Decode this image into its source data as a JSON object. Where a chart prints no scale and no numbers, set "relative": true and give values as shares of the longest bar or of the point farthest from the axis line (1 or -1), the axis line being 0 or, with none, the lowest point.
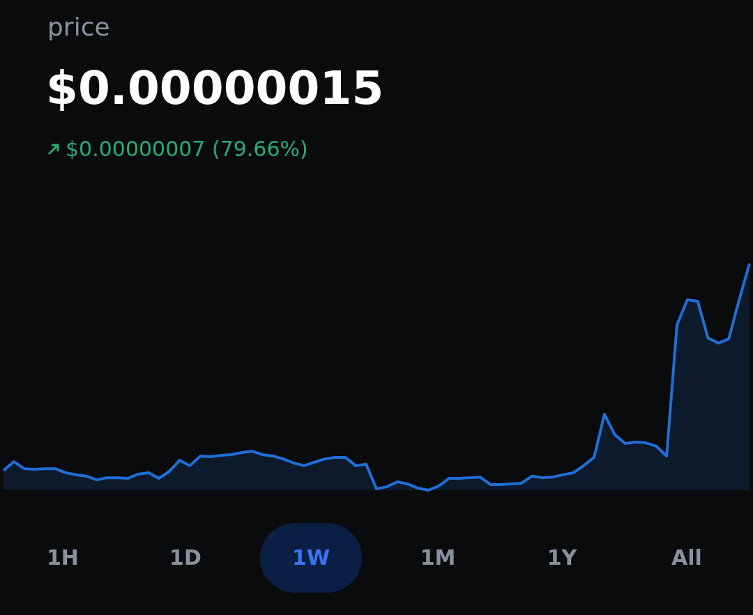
{
  "chart_data": {
    "type": "area",
    "title": "price",
    "subtitle": "$0.00000015",
    "annotations": [
      "$0.00000007 (79.66%)",
      "1H",
      "1D",
      "1W",
      "1M",
      "1Y",
      "All"
    ],
    "categories": [
      null,
      null,
      null,
      null,
      null,
      null,
      null,
      null,
      null,
      null,
      null,
      null,
      null,
      null,
      null,
      null,
      null,
      null,
      null,
      null,
      null,
      null,
      null,
      null,
      null,
      null,
      null,
      null,
      null,
      null,
      null,
      null,
      null,
      null,
      null,
      null,
      null,
      null,
      null,
      null,
      null,
      null,
      null,
      null,
      null,
      null,
      null,
      null,
      null,
      null,
      null,
      null,
      null,
      null,
      null,
      null,
      null,
      null,
      null,
      null,
      null,
      null,
      null,
      null,
      null,
      null,
      null,
      null,
      null,
      null,
      null,
      null,
      null
    ],
    "relative": true,
    "tick_labels": false,
    "marker": "none",
    "line_style": "solid",
    "series": [
      {
        "color": "#1f6fd6",
        "values": [
          0.086,
          0.126,
          0.095,
          0.092,
          0.095,
          0.095,
          0.077,
          0.068,
          0.062,
          0.046,
          0.055,
          0.055,
          0.052,
          0.071,
          0.077,
          0.052,
          0.083,
          0.132,
          0.108,
          0.151,
          0.148,
          0.154,
          0.157,
          0.166,
          0.172,
          0.157,
          0.151,
          0.138,
          0.12,
          0.108,
          0.123,
          0.138,
          0.145,
          0.145,
          0.108,
          0.115,
          0.006,
          0.015,
          0.037,
          0.028,
          0.009,
          0,
          0.018,
          0.052,
          0.052,
          0.055,
          0.058,
          0.025,
          0.025,
          0.028,
          0.031,
          0.062,
          0.055,
          0.058,
          0.068,
          0.077,
          0.108,
          0.145,
          0.335,
          0.245,
          0.206,
          0.212,
          0.209,
          0.194,
          0.151,
          0.729,
          0.84,
          0.834,
          0.671,
          0.649,
          0.668,
          0.84,
          1
        ]
      }
    ]
  }
}
